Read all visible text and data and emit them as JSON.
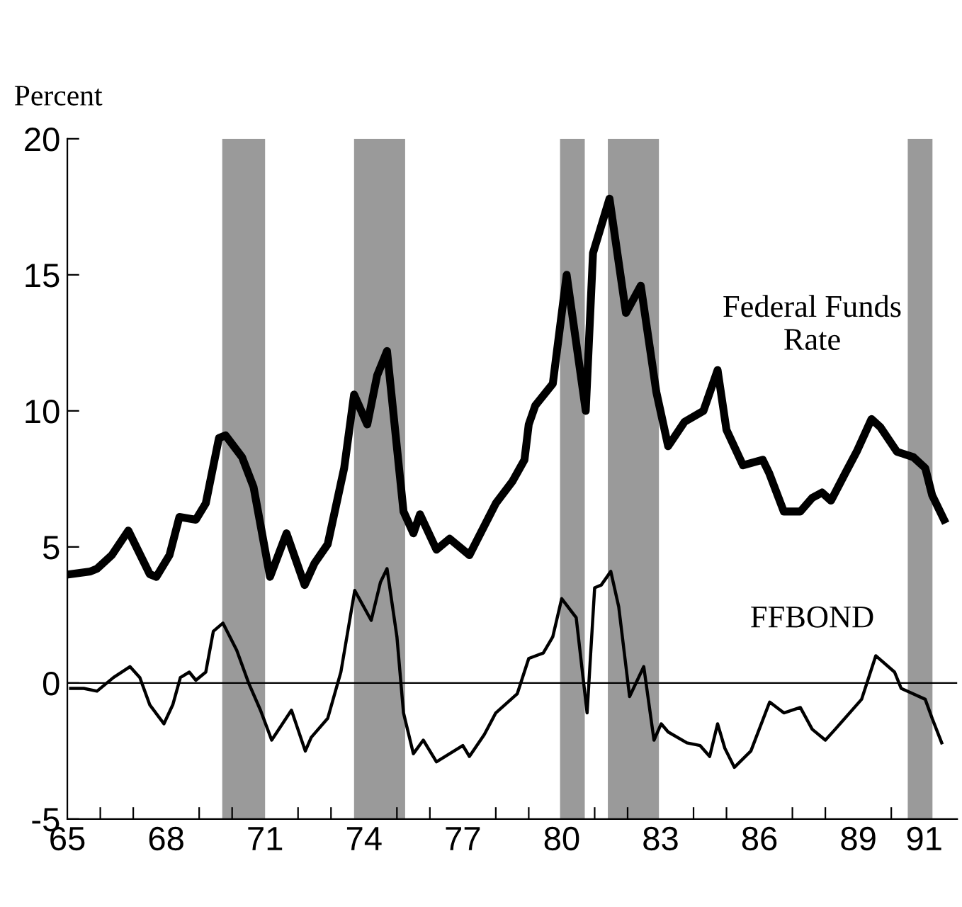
{
  "chart_data": {
    "type": "line",
    "ylabel": "Percent",
    "xlim": [
      65,
      92
    ],
    "ylim": [
      -5,
      20
    ],
    "yticks": [
      -5,
      0,
      5,
      10,
      15,
      20
    ],
    "xticks": [
      65,
      68,
      71,
      74,
      77,
      80,
      83,
      86,
      89,
      91,
      {
        "value": 66,
        "label": null
      },
      {
        "value": 67,
        "label": null
      },
      {
        "value": 69,
        "label": null
      },
      {
        "value": 70,
        "label": null
      },
      {
        "value": 72,
        "label": null
      },
      {
        "value": 73,
        "label": null
      },
      {
        "value": 75,
        "label": null
      },
      {
        "value": 76,
        "label": null
      },
      {
        "value": 78,
        "label": null
      },
      {
        "value": 79,
        "label": null
      },
      {
        "value": 81,
        "label": null
      },
      {
        "value": 82,
        "label": null
      },
      {
        "value": 84,
        "label": null
      },
      {
        "value": 85,
        "label": null
      },
      {
        "value": 87,
        "label": null
      },
      {
        "value": 88,
        "label": null
      },
      {
        "value": 90,
        "label": null
      }
    ],
    "grid": false,
    "legend": false,
    "marker": "none",
    "line_style": "solid",
    "ref_lines": [
      {
        "axis": "y",
        "value": 0,
        "label": null,
        "color": "#000000"
      }
    ],
    "bands": [
      {
        "axis": "x",
        "from": 69.7,
        "to": 71.0,
        "label": null,
        "color": "#9a9a9a"
      },
      {
        "axis": "x",
        "from": 73.7,
        "to": 75.25,
        "label": null,
        "color": "#9a9a9a"
      },
      {
        "axis": "x",
        "from": 79.95,
        "to": 80.7,
        "label": null,
        "color": "#9a9a9a"
      },
      {
        "axis": "x",
        "from": 81.4,
        "to": 82.95,
        "label": null,
        "color": "#9a9a9a"
      },
      {
        "axis": "x",
        "from": 90.5,
        "to": 91.25,
        "label": null,
        "color": "#9a9a9a"
      }
    ],
    "series": [
      {
        "name": "Federal Funds Rate",
        "color": "#000000",
        "x": [
          65.1,
          65.7,
          65.9,
          66.35,
          66.85,
          67.5,
          67.7,
          68.1,
          68.4,
          68.9,
          69.2,
          69.6,
          69.8,
          70.3,
          70.65,
          71.15,
          71.65,
          72.2,
          72.5,
          72.9,
          73.4,
          73.7,
          74.1,
          74.4,
          74.7,
          75.2,
          75.5,
          75.7,
          76.2,
          76.6,
          77.2,
          78.0,
          78.5,
          78.87,
          79.0,
          79.2,
          79.73,
          80.15,
          80.73,
          80.95,
          81.45,
          81.95,
          82.4,
          82.87,
          83.23,
          83.73,
          84.3,
          84.73,
          85.0,
          85.5,
          86.1,
          86.3,
          86.74,
          87.24,
          87.6,
          87.9,
          88.17,
          88.6,
          88.95,
          89.4,
          89.67,
          90.17,
          90.67,
          91.03,
          91.24,
          91.6
        ],
        "values": [
          4.0,
          4.1,
          4.2,
          4.7,
          5.6,
          4.0,
          3.9,
          4.7,
          6.1,
          6.0,
          6.6,
          9.0,
          9.1,
          8.3,
          7.2,
          3.9,
          5.5,
          3.6,
          4.4,
          5.1,
          7.9,
          10.6,
          9.5,
          11.3,
          12.2,
          6.3,
          5.5,
          6.2,
          4.9,
          5.3,
          4.7,
          6.6,
          7.4,
          8.2,
          9.5,
          10.2,
          11.0,
          15.0,
          10.0,
          15.8,
          17.8,
          13.6,
          14.6,
          10.7,
          8.7,
          9.6,
          10.0,
          11.5,
          9.3,
          8.0,
          8.2,
          7.7,
          6.3,
          6.3,
          6.8,
          7.0,
          6.7,
          7.7,
          8.5,
          9.7,
          9.4,
          8.5,
          8.3,
          7.9,
          6.9,
          6.0
        ]
      },
      {
        "name": "FFBOND",
        "color": "#000000",
        "x": [
          65.1,
          65.5,
          65.9,
          66.4,
          66.9,
          67.2,
          67.5,
          67.93,
          68.2,
          68.43,
          68.7,
          68.9,
          69.2,
          69.43,
          69.72,
          70.14,
          70.5,
          70.86,
          71.2,
          71.8,
          72.22,
          72.4,
          72.9,
          73.3,
          73.72,
          74.22,
          74.5,
          74.7,
          75.0,
          75.2,
          75.5,
          75.8,
          76.2,
          76.6,
          77.0,
          77.2,
          77.65,
          78.0,
          78.65,
          79.0,
          79.44,
          79.73,
          80.0,
          80.44,
          80.77,
          81.0,
          81.2,
          81.49,
          81.73,
          82.06,
          82.49,
          82.8,
          83.02,
          83.23,
          83.8,
          84.2,
          84.49,
          84.73,
          84.95,
          85.24,
          85.74,
          86.31,
          86.74,
          87.24,
          87.6,
          88.0,
          88.3,
          89.1,
          89.53,
          90.1,
          90.3,
          90.67,
          91.03,
          91.24,
          91.53
        ],
        "values": [
          -0.2,
          -0.2,
          -0.3,
          0.2,
          0.6,
          0.2,
          -0.8,
          -1.5,
          -0.8,
          0.2,
          0.4,
          0.1,
          0.4,
          1.9,
          2.2,
          1.2,
          0.0,
          -1.0,
          -2.1,
          -1.0,
          -2.5,
          -2.0,
          -1.3,
          0.4,
          3.4,
          2.3,
          3.7,
          4.2,
          1.7,
          -1.1,
          -2.6,
          -2.1,
          -2.9,
          -2.6,
          -2.3,
          -2.7,
          -1.9,
          -1.1,
          -0.4,
          0.9,
          1.1,
          1.7,
          3.1,
          2.4,
          -1.1,
          3.5,
          3.6,
          4.1,
          2.8,
          -0.5,
          0.6,
          -2.1,
          -1.5,
          -1.8,
          -2.2,
          -2.3,
          -2.7,
          -1.5,
          -2.4,
          -3.1,
          -2.5,
          -0.7,
          -1.1,
          -0.9,
          -1.7,
          -2.1,
          -1.7,
          -0.6,
          1.0,
          0.4,
          -0.2,
          -0.4,
          -0.6,
          -1.3,
          -2.2
        ]
      }
    ]
  }
}
